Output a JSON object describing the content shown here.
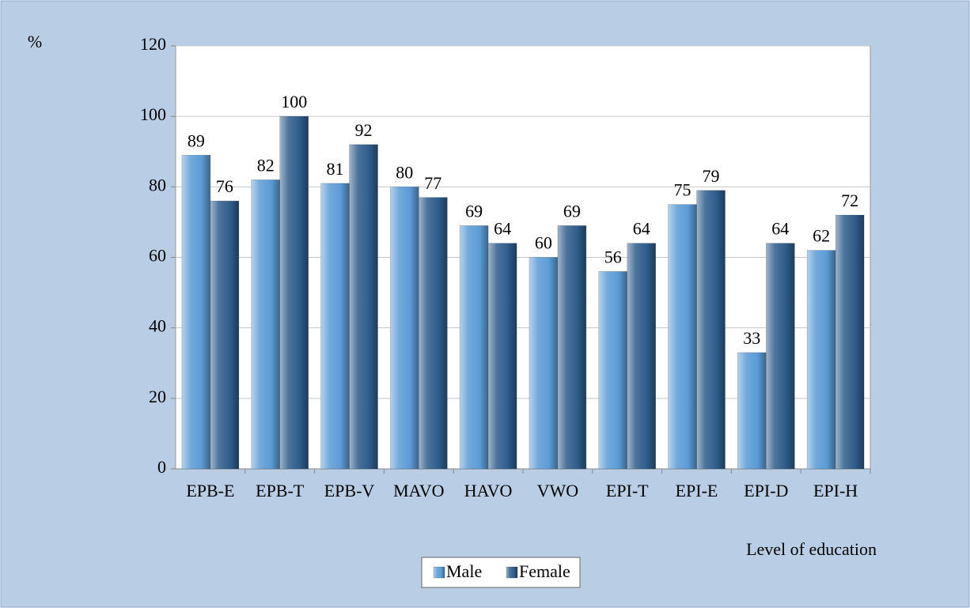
{
  "chart_data": {
    "type": "bar",
    "y_label": "%",
    "x_label": "Level of education",
    "categories": [
      "EPB-E",
      "EPB-T",
      "EPB-V",
      "MAVO",
      "HAVO",
      "VWO",
      "EPI-T",
      "EPI-E",
      "EPI-D",
      "EPI-H"
    ],
    "series": [
      {
        "name": "Male",
        "color": "#5b9bd5",
        "values": [
          89,
          82,
          81,
          80,
          69,
          60,
          56,
          75,
          33,
          62
        ]
      },
      {
        "name": "Female",
        "color": "#2e5c8a",
        "values": [
          76,
          100,
          92,
          77,
          64,
          69,
          64,
          79,
          64,
          72
        ]
      }
    ],
    "ylim": [
      0,
      120
    ],
    "yticks": [
      0,
      20,
      40,
      60,
      80,
      100,
      120
    ],
    "grid": true,
    "legend": "bottom"
  }
}
